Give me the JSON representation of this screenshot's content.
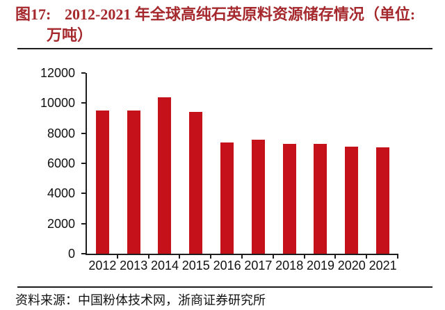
{
  "title": {
    "label": "图17:",
    "line1": "2012-2021 年全球高纯石英原料资源储存情况（单位:",
    "line2": "万吨）"
  },
  "source": {
    "label": "资料来源：",
    "text": "中国粉体技术网，浙商证券研究所"
  },
  "colors": {
    "title_red": "#A5282D",
    "bar_red": "#C5121A",
    "axis_black": "#1C1C1C"
  },
  "chart_data": {
    "type": "bar",
    "title": "2012-2021年全球高纯石英原料资源储存情况",
    "unit_label": "万吨",
    "categories": [
      "2012",
      "2013",
      "2014",
      "2015",
      "2016",
      "2017",
      "2018",
      "2019",
      "2020",
      "2021"
    ],
    "values": [
      9500,
      9500,
      10400,
      9400,
      7400,
      7550,
      7300,
      7300,
      7100,
      7050
    ],
    "xlabel": "",
    "ylabel": "",
    "ylim": [
      0,
      12000
    ],
    "yticks": [
      0,
      2000,
      4000,
      6000,
      8000,
      10000,
      12000
    ],
    "grid": false,
    "legend_position": "none",
    "bar_color": "#C5121A"
  }
}
